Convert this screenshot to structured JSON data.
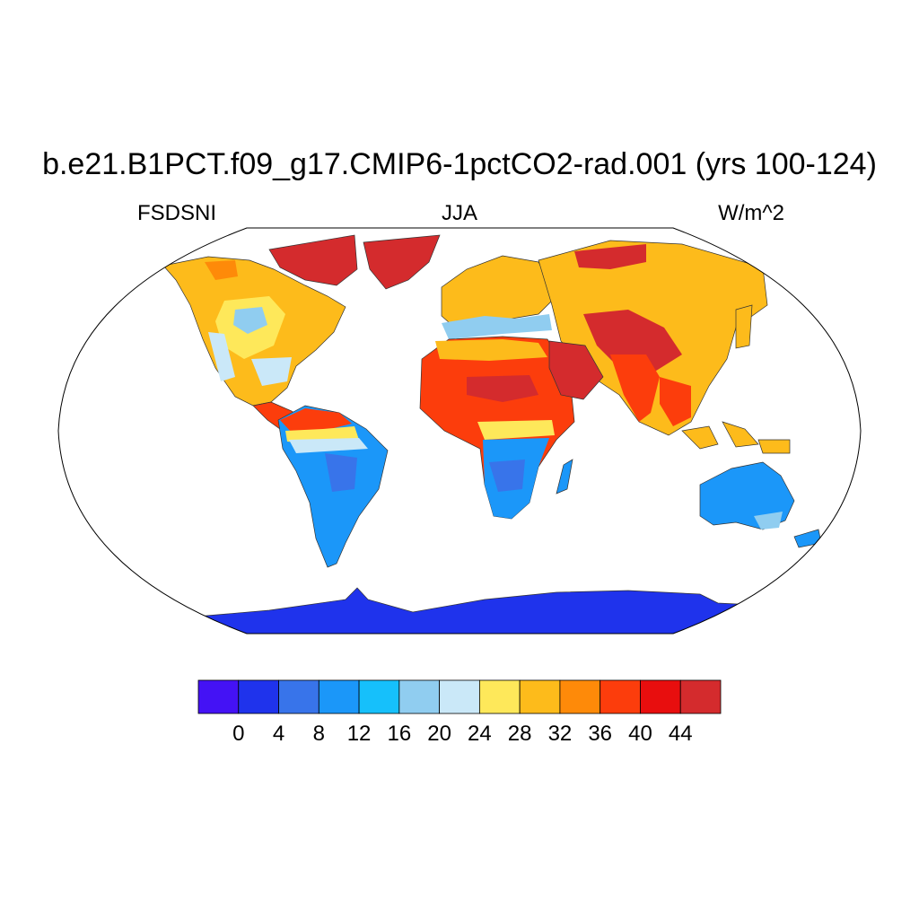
{
  "title": "b.e21.B1PCT.f09_g17.CMIP6-1pctCO2-rad.001 (yrs 100-124)",
  "left_subtitle": "FSDSNI",
  "center_subtitle": "JJA",
  "right_subtitle": "W/m^2",
  "colorbar": {
    "colors": [
      "#4412f5",
      "#1f33ec",
      "#3874ea",
      "#1b97f9",
      "#16c0fb",
      "#90cdf0",
      "#cae8f8",
      "#fee85a",
      "#fdbb1b",
      "#fe8a09",
      "#fc3d0c",
      "#e80e0e",
      "#d42b2d"
    ],
    "labels": [
      "0",
      "4",
      "8",
      "12",
      "16",
      "20",
      "24",
      "28",
      "32",
      "36",
      "40",
      "44"
    ]
  },
  "colors": {
    "antarctica": "#1f33ec",
    "sahara": "#fc3d0c",
    "arctic": "#d42b2d"
  }
}
